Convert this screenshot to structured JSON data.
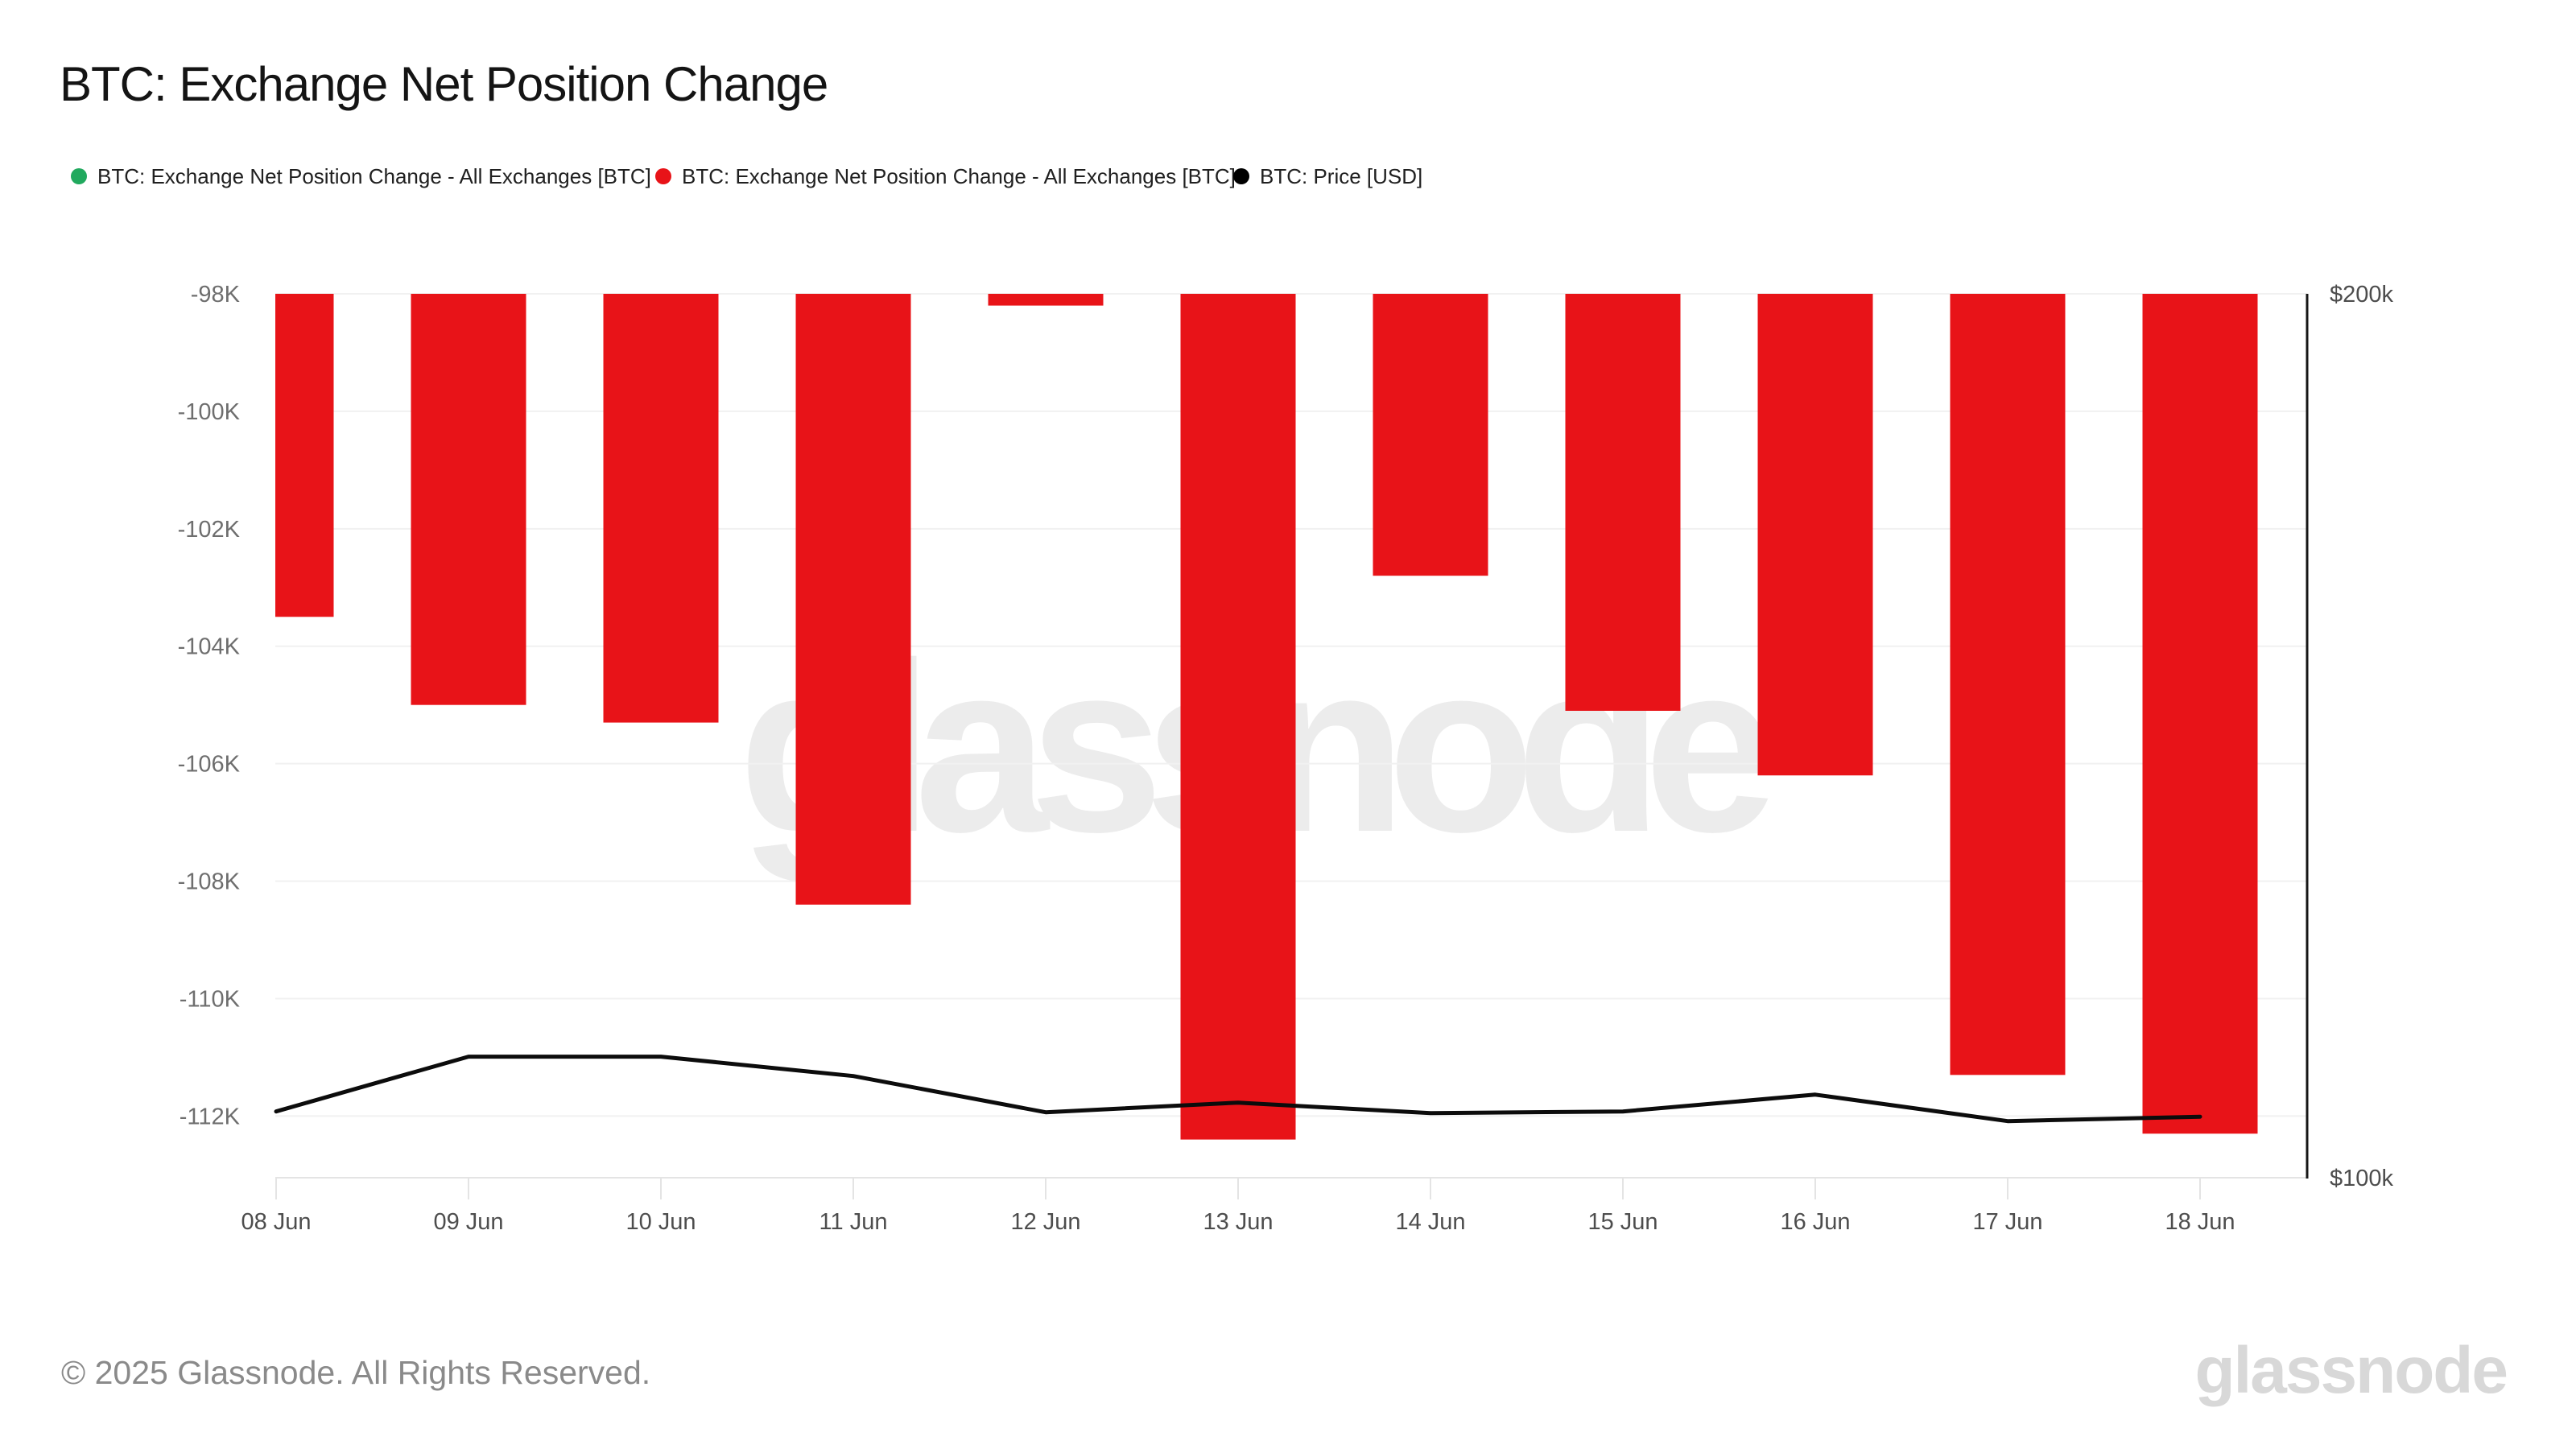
{
  "header": {
    "title": "BTC: Exchange Net Position Change"
  },
  "legend": {
    "items": [
      {
        "label": "BTC: Exchange Net Position Change - All Exchanges [BTC]",
        "color": "#21a95e"
      },
      {
        "label": "BTC: Exchange Net Position Change - All Exchanges [BTC]",
        "color": "#e81318"
      },
      {
        "label": "BTC: Price [USD]",
        "color": "#000000"
      }
    ]
  },
  "watermark": {
    "text": "glassnode"
  },
  "footer": {
    "copyright": "© 2025 Glassnode. All Rights Reserved.",
    "brand": "glassnode"
  },
  "chart_data": {
    "type": "bar",
    "title": "BTC: Exchange Net Position Change",
    "categories": [
      "08 Jun",
      "09 Jun",
      "10 Jun",
      "11 Jun",
      "12 Jun",
      "13 Jun",
      "14 Jun",
      "15 Jun",
      "16 Jun",
      "17 Jun",
      "18 Jun"
    ],
    "series": [
      {
        "name": "BTC: Exchange Net Position Change - All Exchanges [BTC]",
        "type": "bar",
        "axis": "left",
        "color": "#e81318",
        "values": [
          -103500,
          -105000,
          -105300,
          -108400,
          -98200,
          -112400,
          -102800,
          -105100,
          -106200,
          -111300,
          -112300
        ]
      },
      {
        "name": "BTC: Price [USD]",
        "type": "line",
        "axis": "right",
        "color": "#0c0c0c",
        "values": [
          107500,
          113700,
          113700,
          111500,
          107400,
          108500,
          107300,
          107500,
          109400,
          106400,
          106900
        ]
      }
    ],
    "left_axis": {
      "unit": "BTC",
      "range_top": -98000,
      "range_bottom": -113050,
      "ticks": [
        {
          "value": -98000,
          "label": "-98K"
        },
        {
          "value": -100000,
          "label": "-100K"
        },
        {
          "value": -102000,
          "label": "-102K"
        },
        {
          "value": -104000,
          "label": "-104K"
        },
        {
          "value": -106000,
          "label": "-106K"
        },
        {
          "value": -108000,
          "label": "-108K"
        },
        {
          "value": -110000,
          "label": "-110K"
        },
        {
          "value": -112000,
          "label": "-112K"
        }
      ]
    },
    "right_axis": {
      "unit": "USD",
      "range_bottom": 100000,
      "range_top": 200000,
      "ticks": [
        {
          "value": 200000,
          "label": "$200k"
        },
        {
          "value": 100000,
          "label": "$100k"
        }
      ]
    },
    "grid": "horizontal",
    "legend_position": "top"
  }
}
